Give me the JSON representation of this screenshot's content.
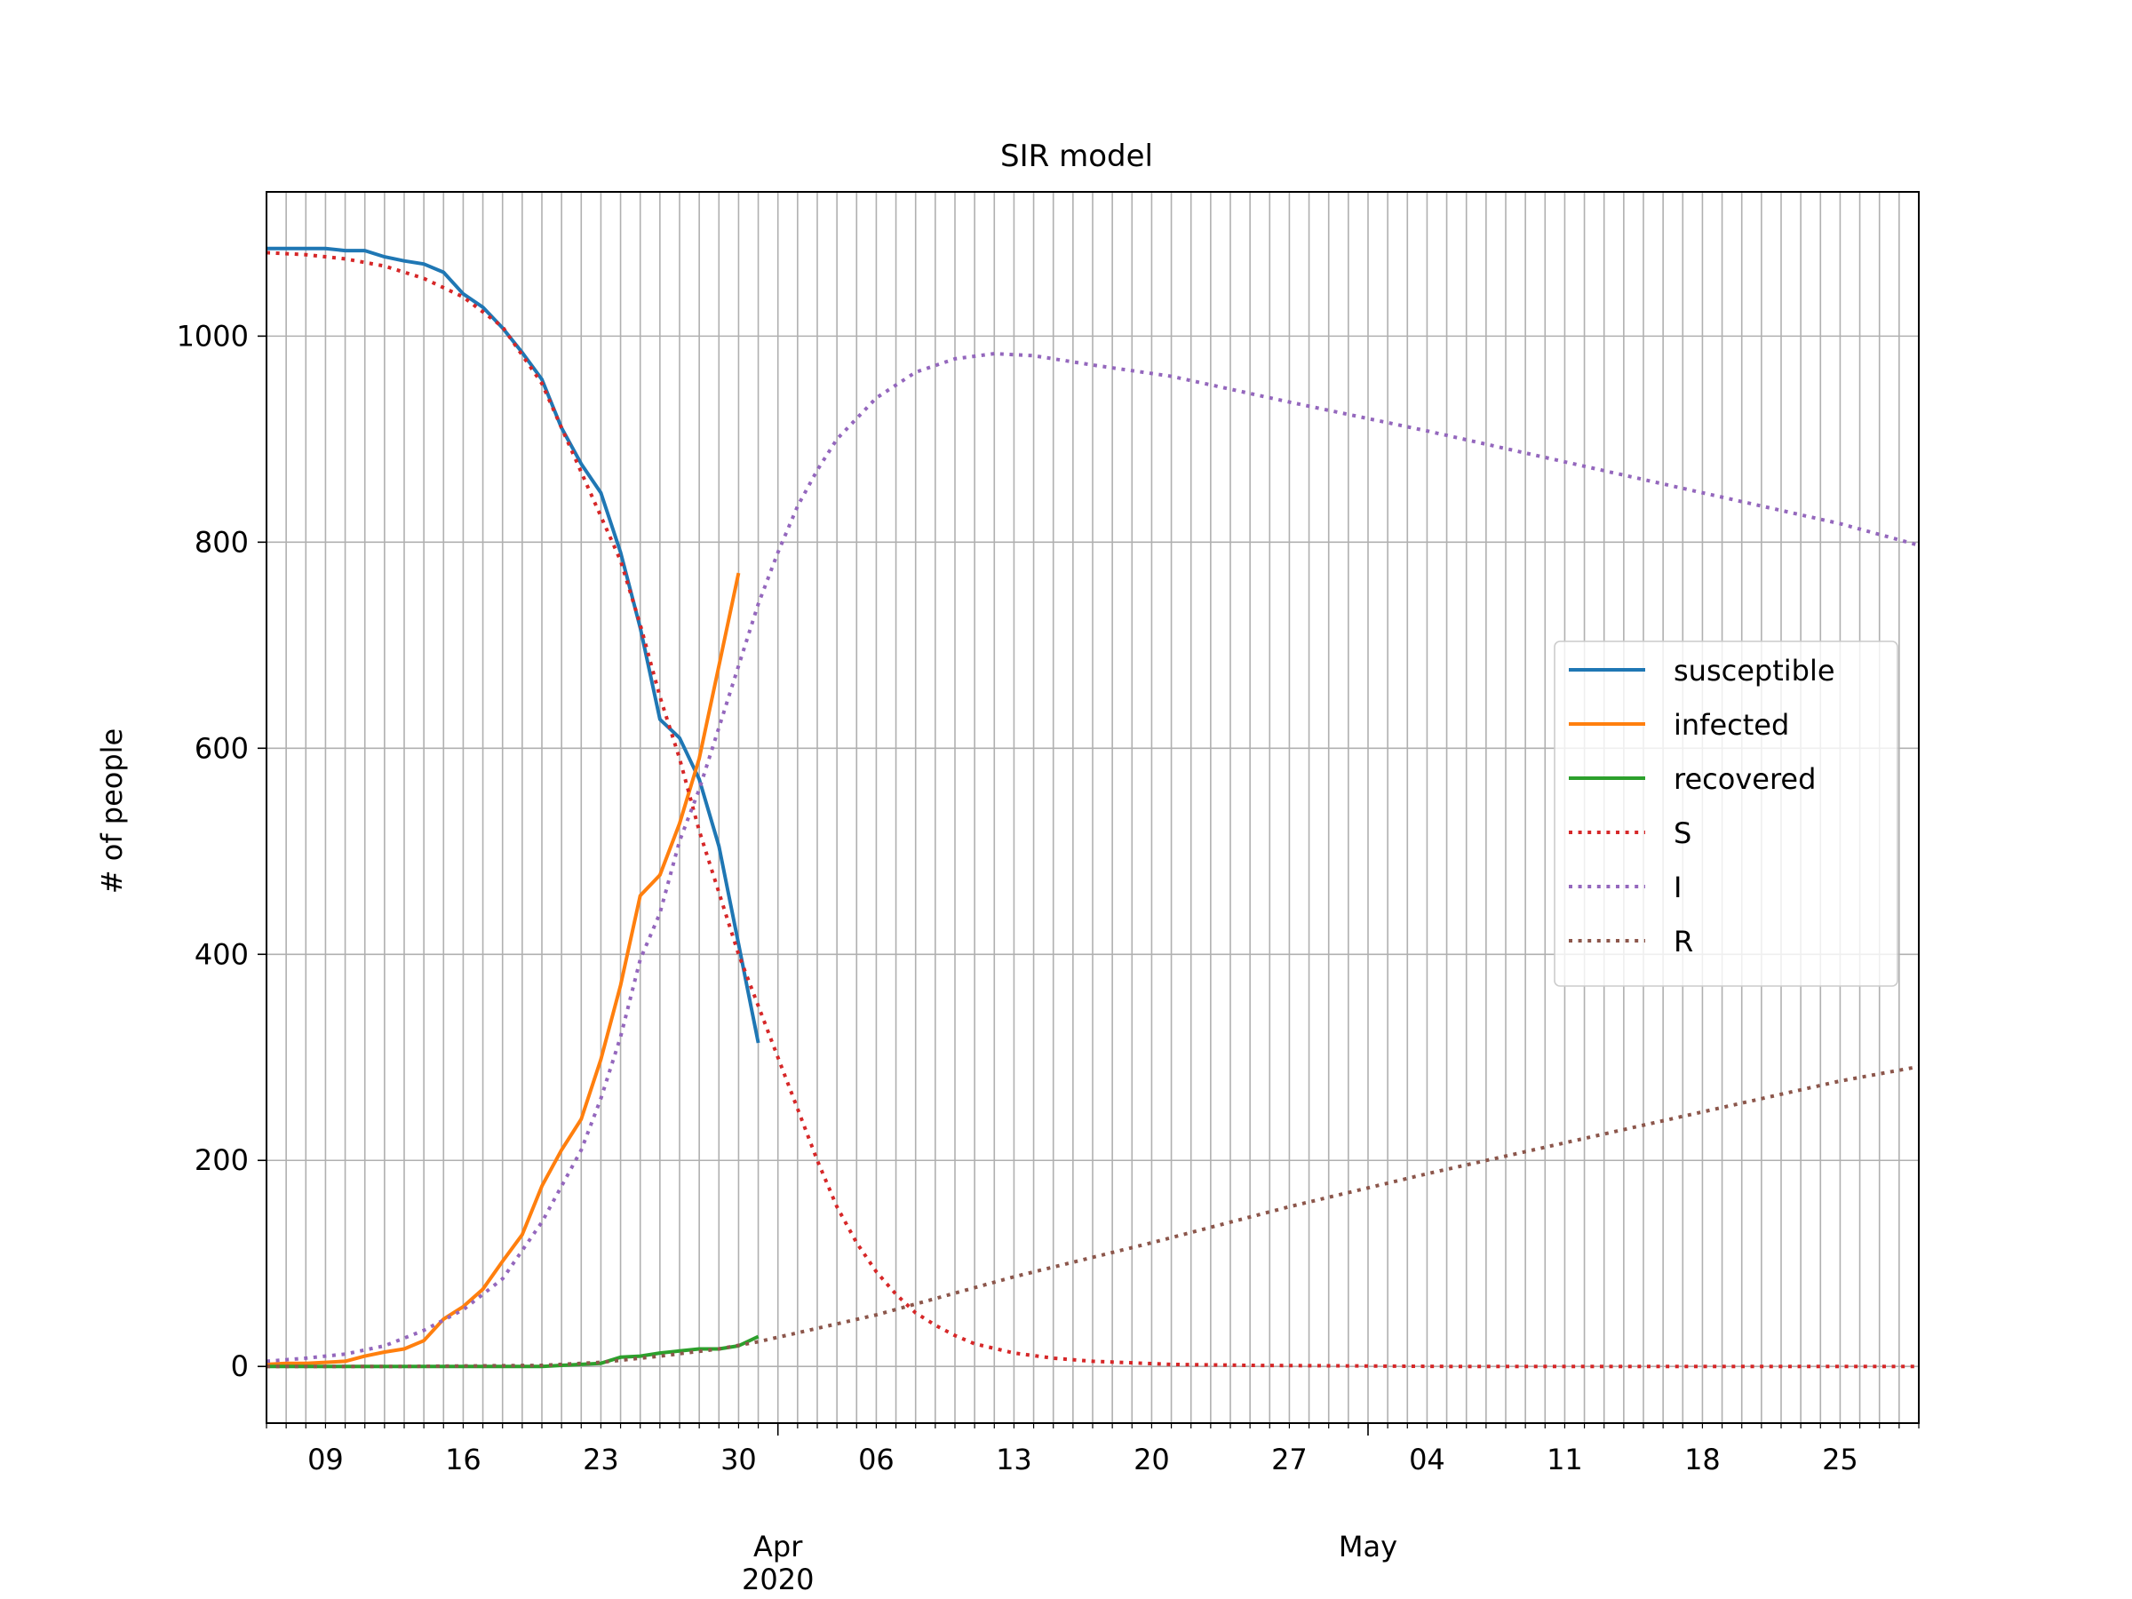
{
  "chart_data": {
    "type": "line",
    "title": "SIR model",
    "xlabel": "",
    "ylabel": "# of people",
    "grid": true,
    "legend_placement": "center-right",
    "x_axis": {
      "type": "date",
      "start": "2020-03-06",
      "end": "2020-05-29",
      "minor_tick_every_days": 1,
      "major_ticks": [
        {
          "date": "2020-03-09",
          "label": "09"
        },
        {
          "date": "2020-03-16",
          "label": "16"
        },
        {
          "date": "2020-03-23",
          "label": "23"
        },
        {
          "date": "2020-03-30",
          "label": "30"
        },
        {
          "date": "2020-04-06",
          "label": "06"
        },
        {
          "date": "2020-04-13",
          "label": "13"
        },
        {
          "date": "2020-04-20",
          "label": "20"
        },
        {
          "date": "2020-04-27",
          "label": "27"
        },
        {
          "date": "2020-05-04",
          "label": "04"
        },
        {
          "date": "2020-05-11",
          "label": "11"
        },
        {
          "date": "2020-05-18",
          "label": "18"
        },
        {
          "date": "2020-05-25",
          "label": "25"
        }
      ],
      "month_ticks": [
        {
          "date": "2020-04-01",
          "label": "Apr",
          "sublabel": "2020"
        },
        {
          "date": "2020-05-01",
          "label": "May",
          "sublabel": ""
        }
      ]
    },
    "ylim": [
      -55,
      1140
    ],
    "yticks": [
      0,
      200,
      400,
      600,
      800,
      1000
    ],
    "colors": {
      "susceptible": "#1f77b4",
      "infected": "#ff7f0e",
      "recovered": "#2ca02c",
      "S": "#d62728",
      "I": "#9467bd",
      "R": "#8c564b"
    },
    "series": [
      {
        "name": "susceptible",
        "style": "solid",
        "color": "#1f77b4",
        "points": [
          [
            "2020-03-06",
            1085
          ],
          [
            "2020-03-07",
            1085
          ],
          [
            "2020-03-08",
            1085
          ],
          [
            "2020-03-09",
            1085
          ],
          [
            "2020-03-10",
            1083
          ],
          [
            "2020-03-11",
            1083
          ],
          [
            "2020-03-12",
            1077
          ],
          [
            "2020-03-13",
            1073
          ],
          [
            "2020-03-14",
            1070
          ],
          [
            "2020-03-15",
            1062
          ],
          [
            "2020-03-16",
            1041
          ],
          [
            "2020-03-17",
            1028
          ],
          [
            "2020-03-18",
            1008
          ],
          [
            "2020-03-19",
            984
          ],
          [
            "2020-03-20",
            958
          ],
          [
            "2020-03-21",
            911
          ],
          [
            "2020-03-22",
            876
          ],
          [
            "2020-03-23",
            848
          ],
          [
            "2020-03-24",
            790
          ],
          [
            "2020-03-25",
            717
          ],
          [
            "2020-03-26",
            628
          ],
          [
            "2020-03-27",
            610
          ],
          [
            "2020-03-28",
            570
          ],
          [
            "2020-03-29",
            505
          ],
          [
            "2020-03-30",
            410
          ],
          [
            "2020-03-31",
            314
          ]
        ]
      },
      {
        "name": "infected",
        "style": "solid",
        "color": "#ff7f0e",
        "points": [
          [
            "2020-03-06",
            2
          ],
          [
            "2020-03-07",
            3
          ],
          [
            "2020-03-08",
            3
          ],
          [
            "2020-03-09",
            4
          ],
          [
            "2020-03-10",
            5
          ],
          [
            "2020-03-11",
            10
          ],
          [
            "2020-03-12",
            14
          ],
          [
            "2020-03-13",
            17
          ],
          [
            "2020-03-14",
            25
          ],
          [
            "2020-03-15",
            46
          ],
          [
            "2020-03-16",
            58
          ],
          [
            "2020-03-17",
            75
          ],
          [
            "2020-03-18",
            102
          ],
          [
            "2020-03-19",
            128
          ],
          [
            "2020-03-20",
            175
          ],
          [
            "2020-03-21",
            210
          ],
          [
            "2020-03-22",
            240
          ],
          [
            "2020-03-23",
            298
          ],
          [
            "2020-03-24",
            370
          ],
          [
            "2020-03-25",
            457
          ],
          [
            "2020-03-26",
            477
          ],
          [
            "2020-03-27",
            527
          ],
          [
            "2020-03-28",
            590
          ],
          [
            "2020-03-29",
            680
          ],
          [
            "2020-03-30",
            770
          ]
        ]
      },
      {
        "name": "recovered",
        "style": "solid",
        "color": "#2ca02c",
        "points": [
          [
            "2020-03-06",
            0
          ],
          [
            "2020-03-13",
            0
          ],
          [
            "2020-03-20",
            0
          ],
          [
            "2020-03-21",
            1
          ],
          [
            "2020-03-22",
            2
          ],
          [
            "2020-03-23",
            3
          ],
          [
            "2020-03-24",
            9
          ],
          [
            "2020-03-25",
            10
          ],
          [
            "2020-03-26",
            13
          ],
          [
            "2020-03-27",
            15
          ],
          [
            "2020-03-28",
            17
          ],
          [
            "2020-03-29",
            17
          ],
          [
            "2020-03-30",
            20
          ],
          [
            "2020-03-31",
            29
          ]
        ]
      },
      {
        "name": "S",
        "style": "dotted",
        "color": "#d62728",
        "points": [
          [
            "2020-03-06",
            1081
          ],
          [
            "2020-03-08",
            1079
          ],
          [
            "2020-03-10",
            1075
          ],
          [
            "2020-03-12",
            1068
          ],
          [
            "2020-03-14",
            1056
          ],
          [
            "2020-03-16",
            1038
          ],
          [
            "2020-03-18",
            1009
          ],
          [
            "2020-03-20",
            954
          ],
          [
            "2020-03-22",
            868
          ],
          [
            "2020-03-24",
            782
          ],
          [
            "2020-03-25",
            720
          ],
          [
            "2020-03-26",
            650
          ],
          [
            "2020-03-27",
            590
          ],
          [
            "2020-03-28",
            520
          ],
          [
            "2020-03-29",
            460
          ],
          [
            "2020-03-30",
            400
          ],
          [
            "2020-03-31",
            350
          ],
          [
            "2020-04-01",
            300
          ],
          [
            "2020-04-02",
            250
          ],
          [
            "2020-04-03",
            200
          ],
          [
            "2020-04-04",
            155
          ],
          [
            "2020-04-05",
            120
          ],
          [
            "2020-04-06",
            92
          ],
          [
            "2020-04-07",
            70
          ],
          [
            "2020-04-08",
            52
          ],
          [
            "2020-04-09",
            40
          ],
          [
            "2020-04-10",
            30
          ],
          [
            "2020-04-11",
            22
          ],
          [
            "2020-04-13",
            13
          ],
          [
            "2020-04-15",
            8
          ],
          [
            "2020-04-17",
            5
          ],
          [
            "2020-04-21",
            2
          ],
          [
            "2020-04-25",
            1
          ],
          [
            "2020-05-05",
            0
          ],
          [
            "2020-05-29",
            0
          ]
        ]
      },
      {
        "name": "I",
        "style": "dotted",
        "color": "#9467bd",
        "points": [
          [
            "2020-03-06",
            5
          ],
          [
            "2020-03-08",
            8
          ],
          [
            "2020-03-10",
            12
          ],
          [
            "2020-03-12",
            20
          ],
          [
            "2020-03-14",
            35
          ],
          [
            "2020-03-16",
            55
          ],
          [
            "2020-03-18",
            85
          ],
          [
            "2020-03-20",
            140
          ],
          [
            "2020-03-22",
            210
          ],
          [
            "2020-03-23",
            260
          ],
          [
            "2020-03-24",
            320
          ],
          [
            "2020-03-25",
            395
          ],
          [
            "2020-03-26",
            440
          ],
          [
            "2020-03-27",
            510
          ],
          [
            "2020-03-28",
            560
          ],
          [
            "2020-03-29",
            620
          ],
          [
            "2020-03-30",
            680
          ],
          [
            "2020-03-31",
            740
          ],
          [
            "2020-04-01",
            790
          ],
          [
            "2020-04-02",
            835
          ],
          [
            "2020-04-03",
            870
          ],
          [
            "2020-04-04",
            900
          ],
          [
            "2020-04-06",
            940
          ],
          [
            "2020-04-08",
            965
          ],
          [
            "2020-04-10",
            978
          ],
          [
            "2020-04-12",
            983
          ],
          [
            "2020-04-14",
            981
          ],
          [
            "2020-04-17",
            972
          ],
          [
            "2020-04-21",
            961
          ],
          [
            "2020-04-27",
            936
          ],
          [
            "2020-05-04",
            908
          ],
          [
            "2020-05-11",
            878
          ],
          [
            "2020-05-18",
            848
          ],
          [
            "2020-05-25",
            818
          ],
          [
            "2020-05-29",
            797
          ]
        ]
      },
      {
        "name": "R",
        "style": "dotted",
        "color": "#8c564b",
        "points": [
          [
            "2020-03-06",
            0
          ],
          [
            "2020-03-13",
            0
          ],
          [
            "2020-03-20",
            1
          ],
          [
            "2020-03-23",
            4
          ],
          [
            "2020-03-26",
            10
          ],
          [
            "2020-03-29",
            17
          ],
          [
            "2020-03-31",
            24
          ],
          [
            "2020-04-06",
            50
          ],
          [
            "2020-04-13",
            87
          ],
          [
            "2020-04-20",
            120
          ],
          [
            "2020-04-27",
            155
          ],
          [
            "2020-05-04",
            187
          ],
          [
            "2020-05-11",
            217
          ],
          [
            "2020-05-18",
            247
          ],
          [
            "2020-05-25",
            277
          ],
          [
            "2020-05-29",
            291
          ]
        ]
      }
    ]
  }
}
